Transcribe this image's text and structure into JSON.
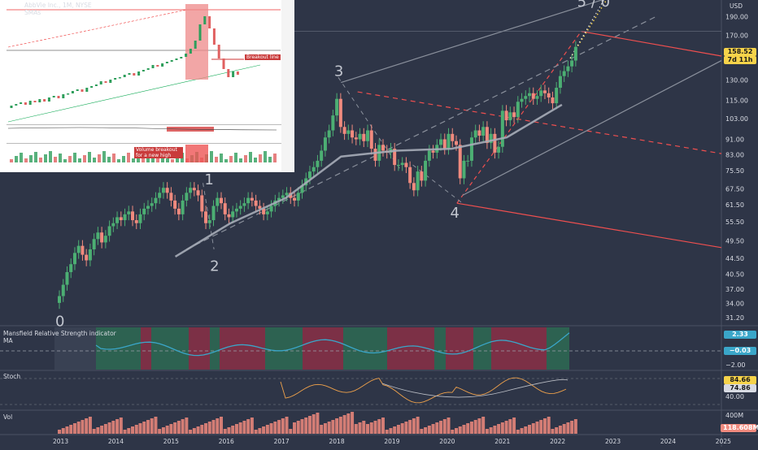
{
  "header": {
    "symbol_line": "AbbVie Inc., 1M, NYSE",
    "indicator_line": "SMAs",
    "currency": "USD"
  },
  "colors": {
    "background": "#2e3547",
    "up": "#4caf73",
    "down": "#f08a7e",
    "sma": "#a7adb8",
    "pitchfork": "#ef4f4f",
    "channel_grey": "#8a909c",
    "wave_label": "#c2c6cf",
    "mansfield_line": "#3aa6c9",
    "mansfield_pos": "#2d6a53",
    "mansfield_neg": "#8a2f46",
    "stoch_k": "#f0a24b",
    "stoch_d": "#b9bcc4",
    "volume": "#f08a7e"
  },
  "price_axis": {
    "ticks": [
      "190.00",
      "170.00",
      "150.00",
      "130.00",
      "115.00",
      "103.00",
      "91.00",
      "83.00",
      "75.50",
      "67.50",
      "61.50",
      "55.50",
      "49.50",
      "44.50",
      "40.50",
      "37.00",
      "34.00",
      "31.20"
    ],
    "last_price": "158.52",
    "countdown": "7d 11h"
  },
  "time_axis": [
    "2013",
    "2014",
    "2015",
    "2016",
    "2017",
    "2018",
    "2019",
    "2020",
    "2021",
    "2022",
    "2023",
    "2024",
    "2025"
  ],
  "wave_labels": [
    {
      "text": "0",
      "year": 2013.0,
      "price": 30.5
    },
    {
      "text": "1",
      "year": 2015.7,
      "price": 71.5
    },
    {
      "text": "2",
      "year": 2015.8,
      "price": 42.5
    },
    {
      "text": "3",
      "year": 2018.05,
      "price": 137
    },
    {
      "text": "4",
      "year": 2020.15,
      "price": 58.5
    },
    {
      "text": "5 / 0",
      "year": 2022.45,
      "price": 208
    }
  ],
  "mansfield": {
    "title": "Mansfield Relative Strength indicator",
    "ma_label": "MA",
    "value": "2.33",
    "ma_value": "−0.03",
    "ticks": [
      "−2.00"
    ]
  },
  "stoch": {
    "title": "Stoch",
    "k_value": "84.66",
    "d_value": "74.86",
    "ticks": [
      "40.00"
    ]
  },
  "volume": {
    "title": "Vol",
    "tick": "400M",
    "last_value": "118.608M"
  },
  "inset": {
    "annotation_1": "Breakout line",
    "annotation_2": "Volume breakout for a new high"
  },
  "chart_data": {
    "type": "candlestick",
    "title": "AbbVie Inc., 1M, NYSE",
    "scale": "log",
    "ylim": [
      31.2,
      210
    ],
    "xlim": [
      "2013-01",
      "2025-01"
    ],
    "series": [
      {
        "name": "ABBV monthly",
        "close": [
          35.5,
          38,
          41,
          43,
          46,
          48,
          45.5,
          44,
          47,
          50,
          52,
          49,
          51,
          54,
          55,
          57,
          56,
          58,
          59,
          56,
          55,
          58,
          60,
          61,
          62,
          64,
          66,
          68,
          66,
          63,
          60,
          58,
          63,
          66,
          68,
          67,
          65,
          59,
          55,
          56,
          61,
          64,
          62,
          58,
          57,
          59,
          60,
          61,
          62,
          64,
          63,
          61,
          60,
          58,
          59,
          61,
          63,
          64,
          65,
          66,
          64,
          63,
          66,
          69,
          72,
          75,
          77,
          80,
          85,
          92,
          96,
          105,
          116,
          98,
          94,
          96,
          92,
          91,
          94,
          90,
          96,
          86,
          80,
          88,
          85,
          84,
          86,
          78,
          78,
          79,
          77,
          70,
          67,
          75,
          71,
          80,
          85,
          84,
          88,
          91,
          86,
          94,
          90,
          88,
          72,
          80,
          80,
          92,
          96,
          93,
          98,
          89,
          94,
          84,
          87,
          108,
          102,
          107,
          104,
          114,
          116,
          118,
          120,
          116,
          118,
          122,
          120,
          117,
          113,
          124,
          133,
          137,
          141,
          146,
          158.52
        ]
      }
    ],
    "sma": {
      "name": "SMA",
      "values_by_year": {
        "2015": 45,
        "2016": 55,
        "2017": 64,
        "2018": 82,
        "2019": 85,
        "2020": 86,
        "2021": 92,
        "2022": 112
      }
    },
    "mansfield_rs": {
      "last": 2.33,
      "ma": -0.03
    },
    "stochastic": {
      "k": 84.66,
      "d": 74.86
    },
    "volume_last": "118.608M"
  }
}
